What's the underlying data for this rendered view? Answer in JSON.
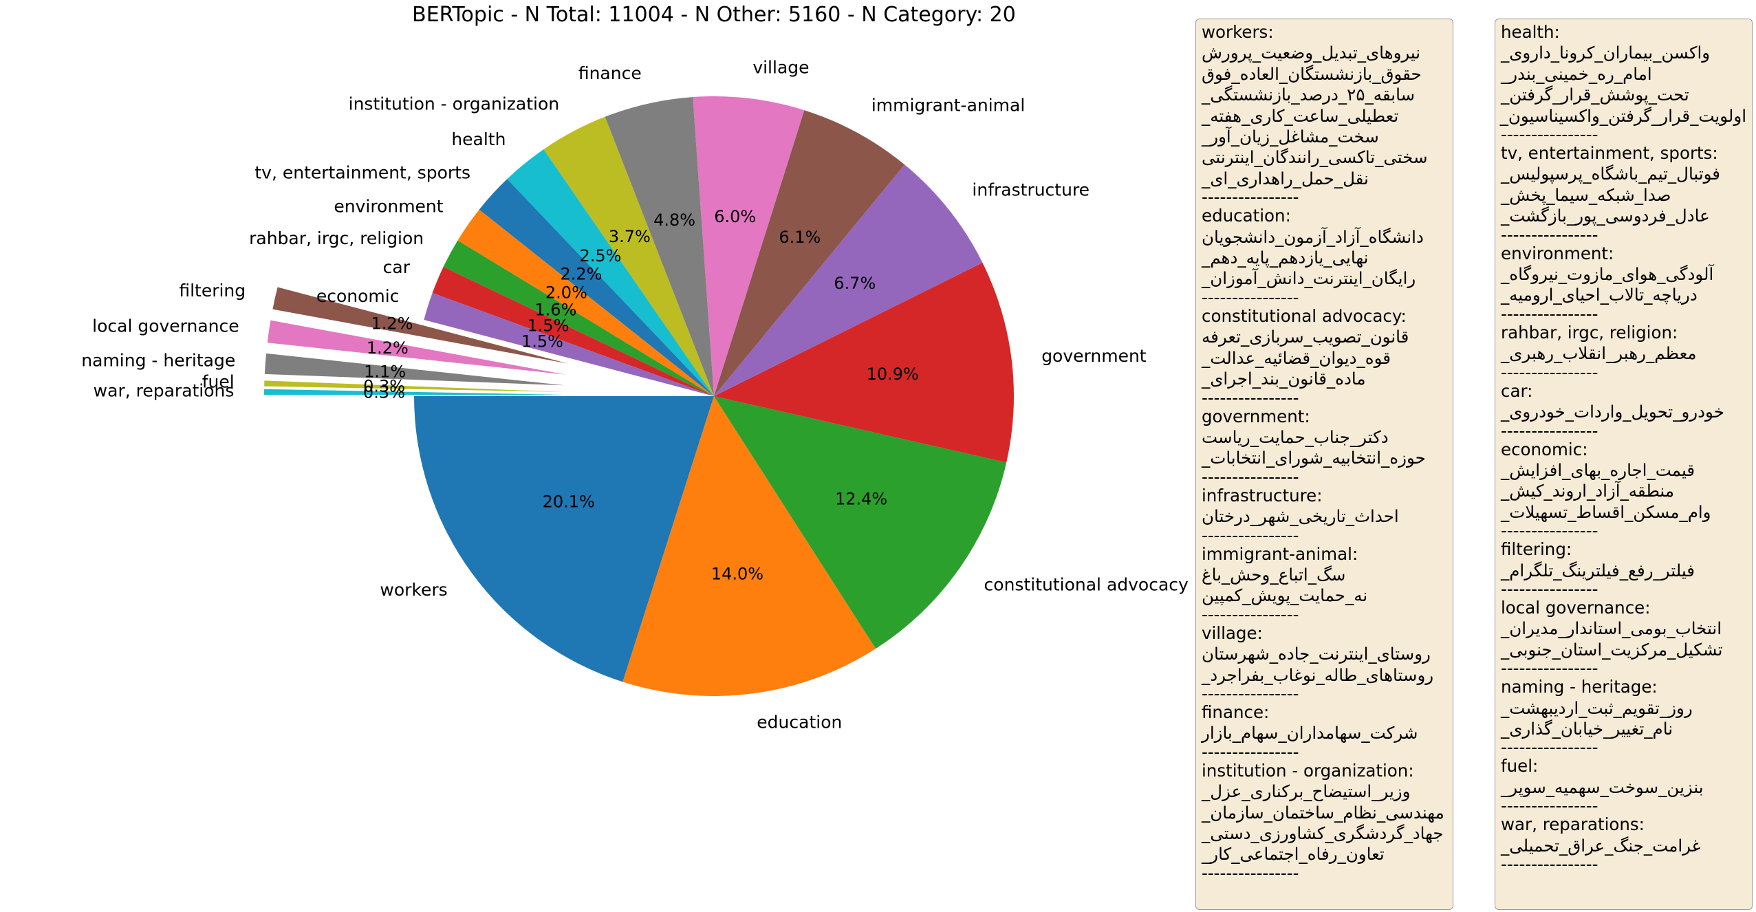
{
  "chart_data": {
    "type": "pie",
    "title": "BERTopic - N Total: 11004 - N Other: 5160 - N Category: 20",
    "slices": [
      {
        "label": "workers",
        "value": 20.1,
        "pct_label": "20.1%",
        "color": "#1f77b4"
      },
      {
        "label": "education",
        "value": 14.0,
        "pct_label": "14.0%",
        "color": "#ff7f0e"
      },
      {
        "label": "constitutional advocacy",
        "value": 12.4,
        "pct_label": "12.4%",
        "color": "#2ca02c"
      },
      {
        "label": "government",
        "value": 10.9,
        "pct_label": "10.9%",
        "color": "#d62728"
      },
      {
        "label": "infrastructure",
        "value": 6.7,
        "pct_label": "6.7%",
        "color": "#9467bd"
      },
      {
        "label": "immigrant-animal",
        "value": 6.1,
        "pct_label": "6.1%",
        "color": "#8c564b"
      },
      {
        "label": "village",
        "value": 6.0,
        "pct_label": "6.0%",
        "color": "#e377c2"
      },
      {
        "label": "finance",
        "value": 4.8,
        "pct_label": "4.8%",
        "color": "#7f7f7f"
      },
      {
        "label": "institution - organization",
        "value": 3.7,
        "pct_label": "3.7%",
        "color": "#bcbd22"
      },
      {
        "label": "health",
        "value": 2.5,
        "pct_label": "2.5%",
        "color": "#17becf"
      },
      {
        "label": "tv, entertainment, sports",
        "value": 2.2,
        "pct_label": "2.2%",
        "color": "#1f77b4"
      },
      {
        "label": "environment",
        "value": 2.0,
        "pct_label": "2.0%",
        "color": "#ff7f0e"
      },
      {
        "label": "rahbar, irgc, religion",
        "value": 1.6,
        "pct_label": "1.6%",
        "color": "#2ca02c"
      },
      {
        "label": "car",
        "value": 1.5,
        "pct_label": "1.5%",
        "color": "#d62728"
      },
      {
        "label": "economic",
        "value": 1.5,
        "pct_label": "1.5%",
        "color": "#9467bd"
      },
      {
        "label": "filtering",
        "value": 1.2,
        "pct_label": "1.2%",
        "color": "#8c564b",
        "exploded": true
      },
      {
        "label": "local governance",
        "value": 1.2,
        "pct_label": "1.2%",
        "color": "#e377c2",
        "exploded": true
      },
      {
        "label": "naming - heritage",
        "value": 1.1,
        "pct_label": "1.1%",
        "color": "#7f7f7f",
        "exploded": true
      },
      {
        "label": "fuel",
        "value": 0.3,
        "pct_label": "0.3%",
        "color": "#bcbd22",
        "exploded": true
      },
      {
        "label": "war, reparations",
        "value": 0.3,
        "pct_label": "0.3%",
        "color": "#17becf",
        "exploded": true
      }
    ],
    "start_angle_deg": 180,
    "direction": "counterclockwise",
    "legend": "two keyword boxes at right"
  },
  "keyword_boxes": {
    "separator": "----------------",
    "left": [
      {
        "category": "workers:",
        "keywords": [
          "نیروهای_تبدیل_وضعیت_پرورش",
          "حقوق_بازنشستگان_العاده_فوق",
          "سابقه_۲۵_درصد_بازنشستگی_",
          "تعطیلی_ساعت_کاری_هفته_",
          "سخت_مشاغل_زیان_آور_",
          "سختی_تاکسی_رانندگان_اینترنتی",
          "نقل_حمل_راهداری_ای_"
        ]
      },
      {
        "category": "education:",
        "keywords": [
          "دانشگاه_آزاد_آزمون_دانشجویان",
          "نهایی_یازدهم_پایه_دهم_",
          "رایگان_اینترنت_دانش_آموزان_"
        ]
      },
      {
        "category": "constitutional advocacy:",
        "keywords": [
          "قانون_تصویب_سربازی_تعرفه",
          "قوه_دیوان_قضائیه_عدالت_",
          "ماده_قانون_بند_اجرای_"
        ]
      },
      {
        "category": "government:",
        "keywords": [
          "دکتر_جناب_حمایت_ریاست",
          "حوزه_انتخابیه_شورای_انتخابات_"
        ]
      },
      {
        "category": "infrastructure:",
        "keywords": [
          "احداث_تاریخی_شهر_درختان"
        ]
      },
      {
        "category": "immigrant-animal:",
        "keywords": [
          "سگ_اتباع_وحش_باغ",
          "نه_حمایت_پویش_کمپین"
        ]
      },
      {
        "category": "village:",
        "keywords": [
          "روستای_اینترنت_جاده_شهرستان",
          "روستاهای_طاله_نوغاب_بفراجرد_"
        ]
      },
      {
        "category": "finance:",
        "keywords": [
          "شرکت_سهامداران_سهام_بازار"
        ]
      },
      {
        "category": "institution - organization:",
        "keywords": [
          "وزیر_استیضاح_برکناری_عزل_",
          "مهندسی_نظام_ساختمان_سازمان_",
          "جهاد_گردشگری_کشاورزی_دستی_",
          "تعاون_رفاه_اجتماعی_کار_"
        ]
      }
    ],
    "right": [
      {
        "category": "health:",
        "keywords": [
          "واکسن_بیماران_کرونا_داروی_",
          "امام_ره_خمینی_بندر_",
          "تحت_پوشش_قرار_گرفتن_",
          "اولویت_قرار_گرفتن_واکسیناسیون_"
        ]
      },
      {
        "category": "tv, entertainment, sports:",
        "keywords": [
          "فوتبال_تیم_باشگاه_پرسپولیس_",
          "صدا_شبکه_سیما_پخش_",
          "عادل_فردوسی_پور_بازگشت_"
        ]
      },
      {
        "category": "environment:",
        "keywords": [
          "آلودگی_هوای_مازوت_نیروگاه_",
          "دریاچه_تالاب_احیای_ارومیه_"
        ]
      },
      {
        "category": "rahbar, irgc, religion:",
        "keywords": [
          "معظم_رهبر_انقلاب_رهبری_"
        ]
      },
      {
        "category": "car:",
        "keywords": [
          "خودرو_تحویل_واردات_خودروی_"
        ]
      },
      {
        "category": "economic:",
        "keywords": [
          "قیمت_اجاره_بهای_افزایش_",
          "منطقه_آزاد_اروند_کیش_",
          "وام_مسکن_اقساط_تسهیلات_"
        ]
      },
      {
        "category": "filtering:",
        "keywords": [
          "فیلتر_رفع_فیلترینگ_تلگرام_"
        ]
      },
      {
        "category": "local governance:",
        "keywords": [
          "انتخاب_بومی_استاندار_مدیران_",
          "تشکیل_مرکزیت_استان_جنوبی_"
        ]
      },
      {
        "category": "naming - heritage:",
        "keywords": [
          "روز_تقویم_ثبت_اردیبهشت_",
          "نام_تغییر_خیابان_گذاری_"
        ]
      },
      {
        "category": "fuel:",
        "keywords": [
          "بنزین_سوخت_سهمیه_سوپر_"
        ]
      },
      {
        "category": "war, reparations:",
        "keywords": [
          "غرامت_جنگ_عراق_تحمیلی_"
        ]
      }
    ]
  }
}
